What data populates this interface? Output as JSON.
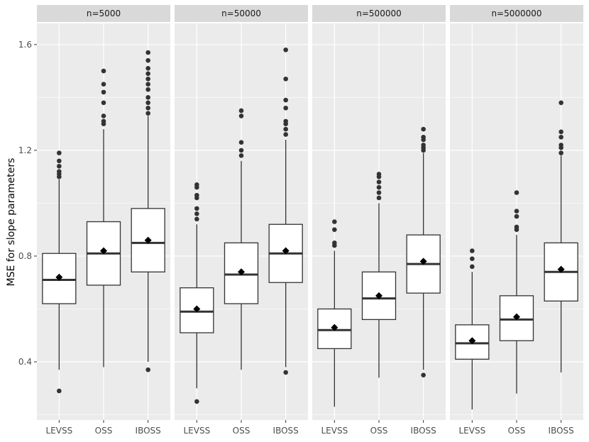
{
  "chart_data": {
    "type": "boxplot",
    "ylabel": "MSE for slope parameters",
    "xlabel": "",
    "ylim": [
      0.18,
      1.68
    ],
    "y_ticks": [
      0.4,
      0.8,
      1.2,
      1.6
    ],
    "y_tick_labels": [
      "0.4",
      "0.8",
      "1.2",
      "1.6"
    ],
    "categories": [
      "LEVSS",
      "OSS",
      "IBOSS"
    ],
    "grid": true,
    "panels": [
      {
        "label": "n=5000",
        "boxes": [
          {
            "category": "LEVSS",
            "whisker_low": 0.37,
            "q1": 0.62,
            "median": 0.71,
            "q3": 0.81,
            "whisker_high": 1.09,
            "mean": 0.72,
            "outliers": [
              0.29,
              1.1,
              1.11,
              1.12,
              1.14,
              1.16,
              1.19
            ]
          },
          {
            "category": "OSS",
            "whisker_low": 0.38,
            "q1": 0.69,
            "median": 0.81,
            "q3": 0.93,
            "whisker_high": 1.28,
            "mean": 0.82,
            "outliers": [
              1.3,
              1.31,
              1.33,
              1.38,
              1.42,
              1.45,
              1.5
            ]
          },
          {
            "category": "IBOSS",
            "whisker_low": 0.4,
            "q1": 0.74,
            "median": 0.85,
            "q3": 0.98,
            "whisker_high": 1.33,
            "mean": 0.86,
            "outliers": [
              0.37,
              1.34,
              1.36,
              1.38,
              1.4,
              1.43,
              1.45,
              1.47,
              1.49,
              1.51,
              1.54,
              1.57
            ]
          }
        ]
      },
      {
        "label": "n=50000",
        "boxes": [
          {
            "category": "LEVSS",
            "whisker_low": 0.3,
            "q1": 0.51,
            "median": 0.59,
            "q3": 0.68,
            "whisker_high": 0.92,
            "mean": 0.6,
            "outliers": [
              0.25,
              0.94,
              0.96,
              0.98,
              1.02,
              1.03,
              1.06,
              1.07
            ]
          },
          {
            "category": "OSS",
            "whisker_low": 0.37,
            "q1": 0.62,
            "median": 0.73,
            "q3": 0.85,
            "whisker_high": 1.16,
            "mean": 0.74,
            "outliers": [
              1.18,
              1.2,
              1.23,
              1.33,
              1.35
            ]
          },
          {
            "category": "IBOSS",
            "whisker_low": 0.38,
            "q1": 0.7,
            "median": 0.81,
            "q3": 0.92,
            "whisker_high": 1.24,
            "mean": 0.82,
            "outliers": [
              0.36,
              1.26,
              1.28,
              1.3,
              1.31,
              1.36,
              1.39,
              1.47,
              1.58
            ]
          }
        ]
      },
      {
        "label": "n=500000",
        "boxes": [
          {
            "category": "LEVSS",
            "whisker_low": 0.23,
            "q1": 0.45,
            "median": 0.52,
            "q3": 0.6,
            "whisker_high": 0.82,
            "mean": 0.53,
            "outliers": [
              0.84,
              0.85,
              0.9,
              0.93
            ]
          },
          {
            "category": "OSS",
            "whisker_low": 0.34,
            "q1": 0.56,
            "median": 0.64,
            "q3": 0.74,
            "whisker_high": 1.0,
            "mean": 0.65,
            "outliers": [
              1.02,
              1.04,
              1.06,
              1.08,
              1.1,
              1.11
            ]
          },
          {
            "category": "IBOSS",
            "whisker_low": 0.37,
            "q1": 0.66,
            "median": 0.77,
            "q3": 0.88,
            "whisker_high": 1.19,
            "mean": 0.78,
            "outliers": [
              0.35,
              1.2,
              1.21,
              1.22,
              1.24,
              1.25,
              1.28
            ]
          }
        ]
      },
      {
        "label": "n=5000000",
        "boxes": [
          {
            "category": "LEVSS",
            "whisker_low": 0.22,
            "q1": 0.41,
            "median": 0.47,
            "q3": 0.54,
            "whisker_high": 0.74,
            "mean": 0.48,
            "outliers": [
              0.76,
              0.79,
              0.82
            ]
          },
          {
            "category": "OSS",
            "whisker_low": 0.28,
            "q1": 0.48,
            "median": 0.56,
            "q3": 0.65,
            "whisker_high": 0.88,
            "mean": 0.57,
            "outliers": [
              0.9,
              0.91,
              0.95,
              0.97,
              1.04
            ]
          },
          {
            "category": "IBOSS",
            "whisker_low": 0.36,
            "q1": 0.63,
            "median": 0.74,
            "q3": 0.85,
            "whisker_high": 1.18,
            "mean": 0.75,
            "outliers": [
              1.19,
              1.21,
              1.22,
              1.25,
              1.27,
              1.38
            ]
          }
        ]
      }
    ]
  },
  "colors": {
    "panel_background": "#ebebeb",
    "strip_background": "#d9d9d9",
    "grid_major": "#ffffff",
    "box_fill": "#ffffff",
    "box_stroke": "#333333",
    "point": "#333333",
    "mean_marker": "#000000"
  }
}
